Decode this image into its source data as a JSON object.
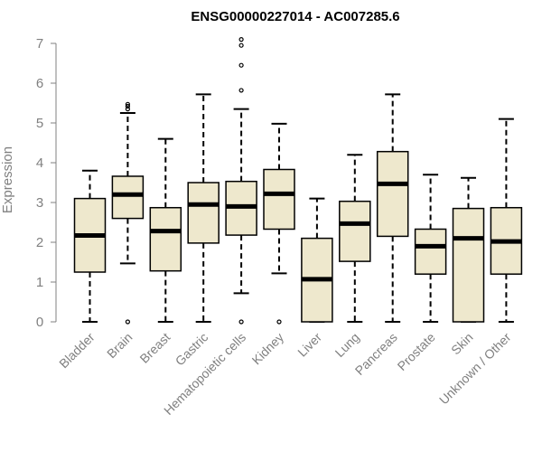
{
  "chart_data": {
    "type": "boxplot",
    "title": "ENSG00000227014 - AC007285.6",
    "xlabel": "",
    "ylabel": "Expression",
    "ylim": [
      0,
      7
    ],
    "yticks": [
      0,
      1,
      2,
      3,
      4,
      5,
      6,
      7
    ],
    "grid": false,
    "box_color": "#EEE8CD",
    "categories": [
      "Bladder",
      "Brain",
      "Breast",
      "Gastric",
      "Hematopoietic cells",
      "Kidney",
      "Liver",
      "Lung",
      "Pancreas",
      "Prostate",
      "Skin",
      "Unknown / Other"
    ],
    "series": [
      {
        "whisker_low": 0,
        "q1": 1.25,
        "median": 2.17,
        "q3": 3.1,
        "whisker_high": 3.8,
        "outliers": []
      },
      {
        "whisker_low": 1.47,
        "q1": 2.6,
        "median": 3.2,
        "q3": 3.66,
        "whisker_high": 5.25,
        "outliers": [
          0,
          5.35,
          5.42,
          5.47
        ]
      },
      {
        "whisker_low": 0,
        "q1": 1.28,
        "median": 2.28,
        "q3": 2.87,
        "whisker_high": 4.6,
        "outliers": []
      },
      {
        "whisker_low": 0,
        "q1": 1.98,
        "median": 2.95,
        "q3": 3.5,
        "whisker_high": 5.72,
        "outliers": []
      },
      {
        "whisker_low": 0.72,
        "q1": 2.18,
        "median": 2.9,
        "q3": 3.53,
        "whisker_high": 5.35,
        "outliers": [
          0,
          5.82,
          6.45,
          6.95,
          7.1
        ]
      },
      {
        "whisker_low": 1.22,
        "q1": 2.33,
        "median": 3.22,
        "q3": 3.83,
        "whisker_high": 4.98,
        "outliers": [
          0
        ]
      },
      {
        "whisker_low": 0,
        "q1": 0,
        "median": 1.07,
        "q3": 2.1,
        "whisker_high": 3.1,
        "outliers": []
      },
      {
        "whisker_low": 0,
        "q1": 1.52,
        "median": 2.47,
        "q3": 3.03,
        "whisker_high": 4.2,
        "outliers": []
      },
      {
        "whisker_low": 0,
        "q1": 2.15,
        "median": 3.47,
        "q3": 4.28,
        "whisker_high": 5.72,
        "outliers": []
      },
      {
        "whisker_low": 0,
        "q1": 1.2,
        "median": 1.9,
        "q3": 2.33,
        "whisker_high": 3.7,
        "outliers": []
      },
      {
        "whisker_low": 0,
        "q1": 0,
        "median": 2.1,
        "q3": 2.85,
        "whisker_high": 3.62,
        "outliers": []
      },
      {
        "whisker_low": 0,
        "q1": 1.2,
        "median": 2.02,
        "q3": 2.87,
        "whisker_high": 5.1,
        "outliers": []
      }
    ]
  }
}
